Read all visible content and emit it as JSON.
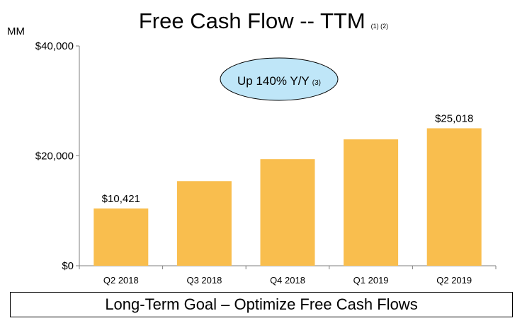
{
  "header": {
    "title": "Free Cash Flow -- TTM",
    "footnote": "(1) (2)",
    "unit": "MM"
  },
  "callout": {
    "text": "Up 140% Y/Y",
    "footnote": "(3)"
  },
  "footer": {
    "goal": "Long-Term Goal – Optimize Free Cash Flows"
  },
  "colors": {
    "bar": "#F9BE4E",
    "callout_fill": "#BFE6F8",
    "axis": "#7F7F7F"
  },
  "chart_data": {
    "type": "bar",
    "title": "Free Cash Flow -- TTM",
    "xlabel": "",
    "ylabel": "MM",
    "categories": [
      "Q2 2018",
      "Q3 2018",
      "Q4 2018",
      "Q1 2019",
      "Q2 2019"
    ],
    "values": [
      10421,
      15400,
      19400,
      23000,
      25018
    ],
    "data_labels": [
      "$10,421",
      "",
      "",
      "",
      "$25,018"
    ],
    "ylim": [
      0,
      40000
    ],
    "yticks": [
      0,
      20000,
      40000
    ],
    "ytick_labels": [
      "$0",
      "$20,000",
      "$40,000"
    ],
    "grid": false,
    "legend": "none"
  }
}
